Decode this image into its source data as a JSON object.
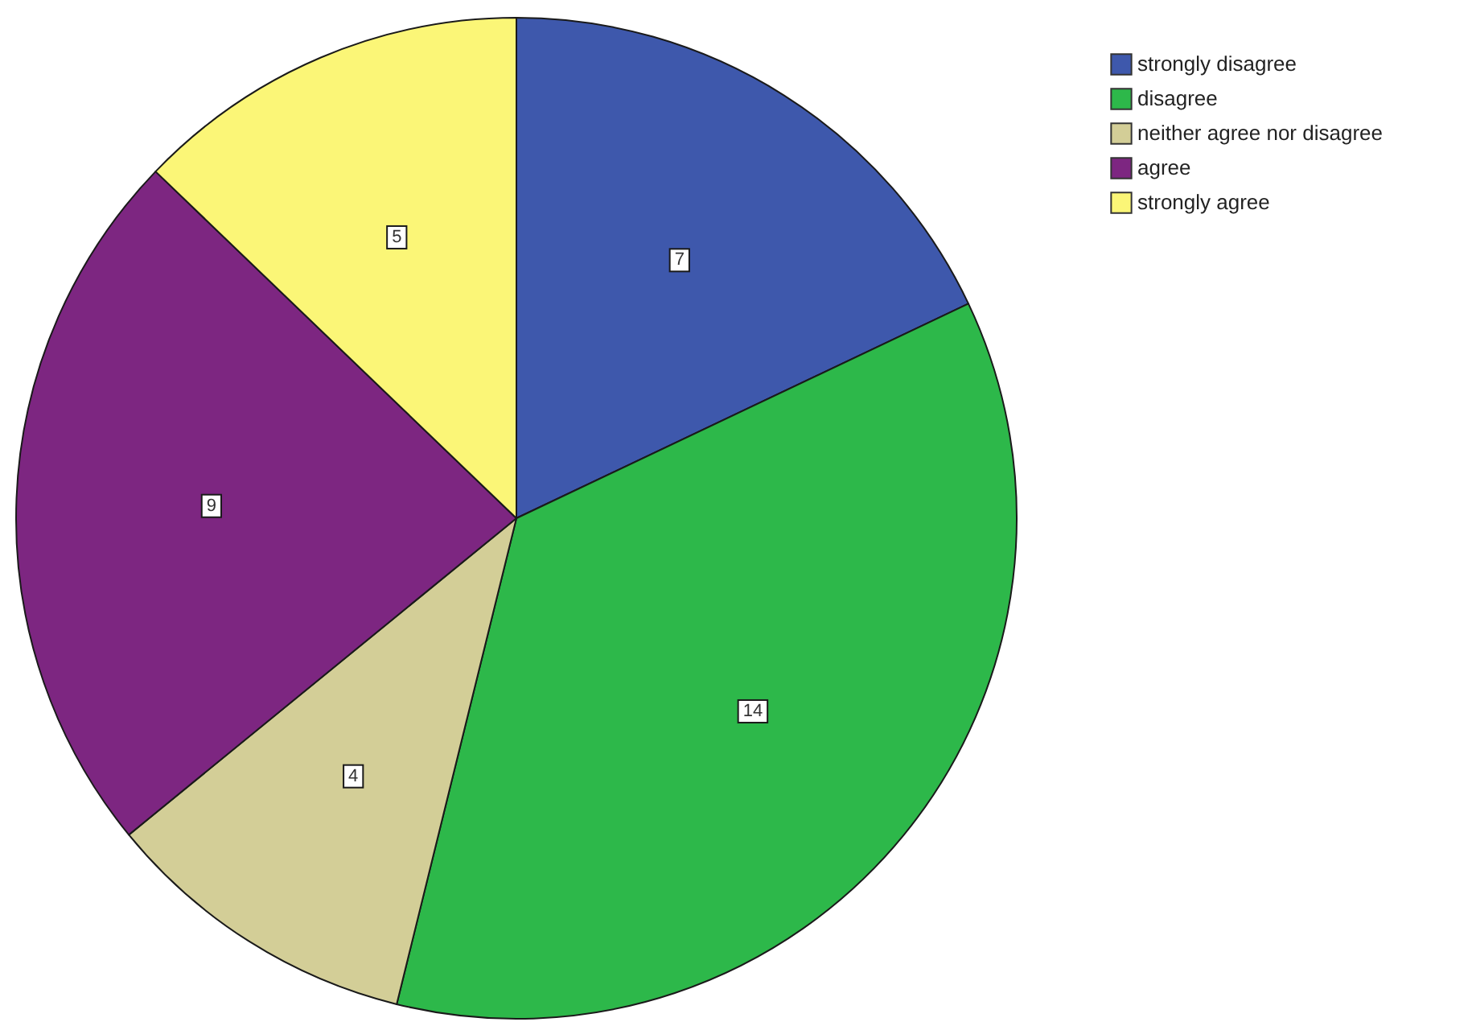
{
  "chart_data": {
    "type": "pie",
    "categories": [
      "strongly disagree",
      "disagree",
      "neither agree nor disagree",
      "agree",
      "strongly agree"
    ],
    "values": [
      7,
      14,
      4,
      9,
      5
    ],
    "colors": [
      "#3e58ac",
      "#2db84a",
      "#d3ce97",
      "#7d2681",
      "#fbf677"
    ],
    "data_labels": true,
    "legend": "top right"
  }
}
